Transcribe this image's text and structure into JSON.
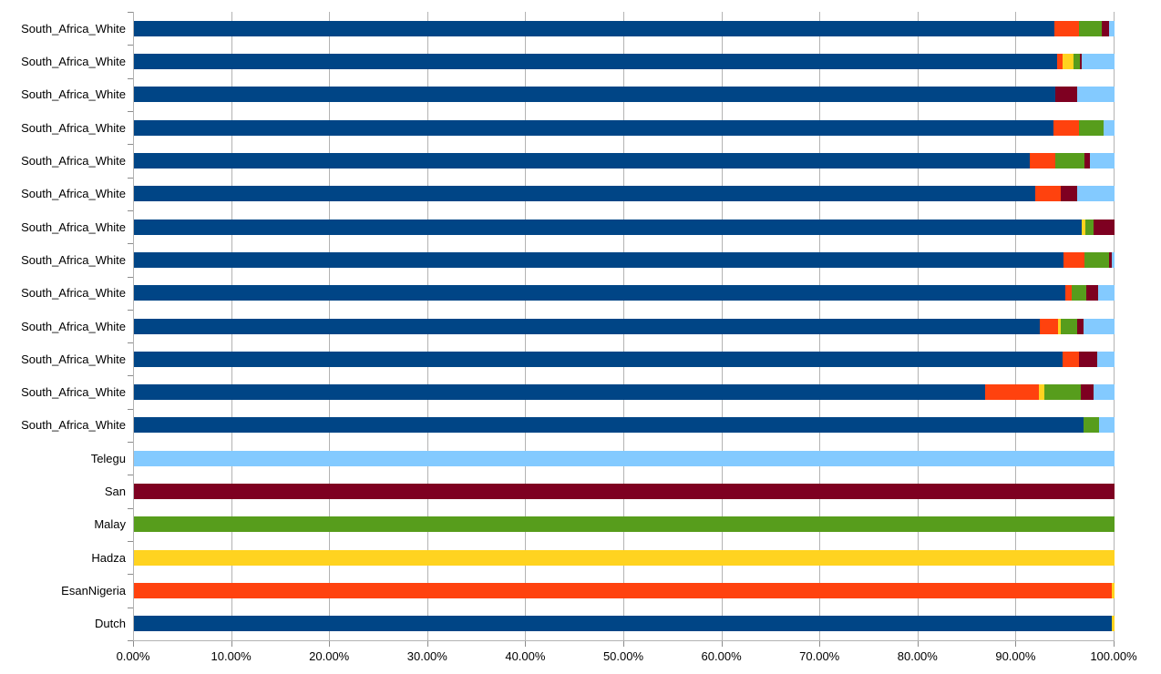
{
  "chart_data": {
    "type": "bar",
    "variant": "horizontal-stacked-100-percent",
    "title": "",
    "xlabel": "",
    "ylabel": "",
    "legend": "none",
    "grid": "vertical-major-on",
    "x_axis": {
      "min": 0,
      "max": 100,
      "tick_step": 10,
      "tick_labels": [
        "0.00%",
        "10.00%",
        "20.00%",
        "30.00%",
        "40.00%",
        "50.00%",
        "60.00%",
        "70.00%",
        "80.00%",
        "90.00%",
        "100.00%"
      ]
    },
    "colors": {
      "navy": "#004586",
      "orange": "#FF420E",
      "yellow": "#FFD320",
      "green": "#579D1C",
      "maroon": "#7E0021",
      "lightblue": "#83CAFF",
      "gridline": "#b3b3b3",
      "tick": "#8c8c8c",
      "text": "#000000",
      "background": "#ffffff"
    },
    "rows": [
      {
        "label": "South_Africa_White",
        "segments": [
          [
            "navy",
            93.9
          ],
          [
            "orange",
            2.5
          ],
          [
            "green",
            2.3
          ],
          [
            "maroon",
            0.7
          ],
          [
            "lightblue",
            0.6
          ]
        ]
      },
      {
        "label": "South_Africa_White",
        "segments": [
          [
            "navy",
            94.1
          ],
          [
            "orange",
            0.6
          ],
          [
            "yellow",
            1.1
          ],
          [
            "green",
            0.7
          ],
          [
            "maroon",
            0.2
          ],
          [
            "lightblue",
            3.3
          ]
        ]
      },
      {
        "label": "South_Africa_White",
        "segments": [
          [
            "navy",
            94.0
          ],
          [
            "maroon",
            2.2
          ],
          [
            "lightblue",
            3.8
          ]
        ]
      },
      {
        "label": "South_Africa_White",
        "segments": [
          [
            "navy",
            93.8
          ],
          [
            "orange",
            2.6
          ],
          [
            "green",
            2.5
          ],
          [
            "lightblue",
            1.1
          ]
        ]
      },
      {
        "label": "South_Africa_White",
        "segments": [
          [
            "navy",
            91.4
          ],
          [
            "orange",
            2.6
          ],
          [
            "green",
            2.9
          ],
          [
            "maroon",
            0.6
          ],
          [
            "lightblue",
            2.5
          ]
        ]
      },
      {
        "label": "South_Africa_White",
        "segments": [
          [
            "navy",
            91.9
          ],
          [
            "orange",
            2.6
          ],
          [
            "maroon",
            1.7
          ],
          [
            "lightblue",
            3.8
          ]
        ]
      },
      {
        "label": "South_Africa_White",
        "segments": [
          [
            "navy",
            96.7
          ],
          [
            "yellow",
            0.3
          ],
          [
            "green",
            0.9
          ],
          [
            "maroon",
            2.1
          ]
        ]
      },
      {
        "label": "South_Africa_White",
        "segments": [
          [
            "navy",
            94.8
          ],
          [
            "orange",
            2.1
          ],
          [
            "green",
            2.5
          ],
          [
            "maroon",
            0.3
          ],
          [
            "lightblue",
            0.3
          ]
        ]
      },
      {
        "label": "South_Africa_White",
        "segments": [
          [
            "navy",
            95.0
          ],
          [
            "orange",
            0.6
          ],
          [
            "green",
            1.5
          ],
          [
            "maroon",
            1.2
          ],
          [
            "lightblue",
            1.7
          ]
        ]
      },
      {
        "label": "South_Africa_White",
        "segments": [
          [
            "navy",
            92.4
          ],
          [
            "orange",
            1.8
          ],
          [
            "yellow",
            0.3
          ],
          [
            "green",
            1.7
          ],
          [
            "maroon",
            0.6
          ],
          [
            "lightblue",
            3.2
          ]
        ]
      },
      {
        "label": "South_Africa_White",
        "segments": [
          [
            "navy",
            94.7
          ],
          [
            "orange",
            1.7
          ],
          [
            "maroon",
            1.8
          ],
          [
            "lightblue",
            1.8
          ]
        ]
      },
      {
        "label": "South_Africa_White",
        "segments": [
          [
            "navy",
            86.8
          ],
          [
            "orange",
            5.5
          ],
          [
            "yellow",
            0.5
          ],
          [
            "green",
            3.8
          ],
          [
            "maroon",
            1.3
          ],
          [
            "lightblue",
            2.1
          ]
        ]
      },
      {
        "label": "South_Africa_White",
        "segments": [
          [
            "navy",
            96.8
          ],
          [
            "green",
            1.6
          ],
          [
            "lightblue",
            1.6
          ]
        ]
      },
      {
        "label": "Telegu",
        "segments": [
          [
            "lightblue",
            100
          ]
        ]
      },
      {
        "label": "San",
        "segments": [
          [
            "maroon",
            100
          ]
        ]
      },
      {
        "label": "Malay",
        "segments": [
          [
            "green",
            100
          ]
        ]
      },
      {
        "label": "Hadza",
        "segments": [
          [
            "yellow",
            100
          ]
        ]
      },
      {
        "label": "EsanNigeria",
        "segments": [
          [
            "orange",
            99.7
          ],
          [
            "yellow",
            0.3
          ]
        ]
      },
      {
        "label": "Dutch",
        "segments": [
          [
            "navy",
            99.7
          ],
          [
            "yellow",
            0.3
          ]
        ]
      }
    ]
  }
}
